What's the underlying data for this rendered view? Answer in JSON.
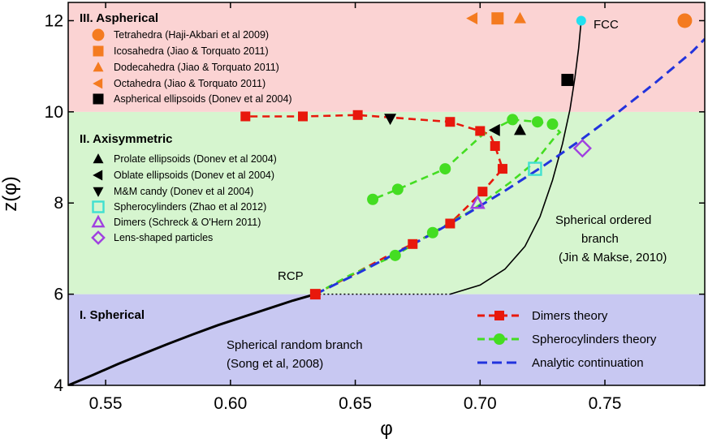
{
  "chart_data": {
    "type": "scatter",
    "title": "",
    "xlabel": "φ",
    "ylabel": "z(φ)",
    "xlim": [
      0.535,
      0.79
    ],
    "ylim": [
      4,
      12.4
    ],
    "x_ticks": [
      0.55,
      0.6,
      0.65,
      0.7,
      0.75
    ],
    "x_tick_labels": [
      "0.55",
      "0.60",
      "0.65",
      "0.70",
      "0.75"
    ],
    "y_ticks": [
      4,
      6,
      8,
      10,
      12
    ],
    "y_tick_labels": [
      "4",
      "6",
      "8",
      "10",
      "12"
    ],
    "regions": [
      {
        "name": "I. Spherical",
        "y0": 4,
        "y1": 6,
        "color": "#c8c8f2"
      },
      {
        "name": "II. Axisymmetric",
        "y0": 6,
        "y1": 10,
        "color": "#d6f5cf"
      },
      {
        "name": "III. Aspherical",
        "y0": 10,
        "y1": 12.4,
        "color": "#fbd3d3"
      }
    ],
    "curves": {
      "spherical_random_branch": {
        "x": [
          0.535,
          0.545,
          0.555,
          0.565,
          0.575,
          0.585,
          0.595,
          0.605,
          0.615,
          0.625,
          0.634
        ],
        "y": [
          4.0,
          4.23,
          4.47,
          4.69,
          4.91,
          5.12,
          5.32,
          5.5,
          5.68,
          5.86,
          6.0
        ]
      },
      "rcp_dotted_link": {
        "x": [
          0.634,
          0.688
        ],
        "y": [
          6.0,
          6.0
        ]
      },
      "spherical_ordered_branch": {
        "x": [
          0.688,
          0.7,
          0.71,
          0.718,
          0.724,
          0.729,
          0.733,
          0.736,
          0.738,
          0.7395,
          0.7405
        ],
        "y": [
          6.0,
          6.2,
          6.55,
          7.05,
          7.7,
          8.5,
          9.3,
          10.05,
          10.75,
          11.4,
          12.0
        ]
      },
      "analytic_continuation": {
        "x": [
          0.634,
          0.65,
          0.665,
          0.68,
          0.695,
          0.71,
          0.725,
          0.74,
          0.755,
          0.77,
          0.785,
          0.79
        ],
        "y": [
          6.0,
          6.43,
          6.86,
          7.3,
          7.77,
          8.27,
          8.8,
          9.37,
          9.98,
          10.63,
          11.32,
          11.6
        ]
      },
      "dimers_theory": {
        "x": [
          0.634,
          0.648,
          0.663,
          0.673,
          0.688,
          0.701,
          0.709,
          0.706,
          0.704,
          0.7,
          0.688,
          0.651,
          0.629,
          0.606
        ],
        "y": [
          6.0,
          6.4,
          6.84,
          7.1,
          7.55,
          8.25,
          8.75,
          9.25,
          9.5,
          9.58,
          9.78,
          9.93,
          9.9,
          9.9
        ]
      },
      "spherocylinders_theory": {
        "x": [
          0.634,
          0.648,
          0.666,
          0.681,
          0.697,
          0.712,
          0.722,
          0.73,
          0.732,
          0.729,
          0.723,
          0.713,
          0.701,
          0.686,
          0.667,
          0.657
        ],
        "y": [
          6.0,
          6.42,
          6.85,
          7.35,
          7.85,
          8.45,
          8.9,
          9.45,
          9.55,
          9.73,
          9.78,
          9.83,
          9.5,
          8.75,
          8.3,
          8.08
        ]
      }
    },
    "series": [
      {
        "name": "Tetrahedra (Haji-Akbari et al 2009)",
        "marker": "circle",
        "color": "#f47b20",
        "points": [
          {
            "x": 0.782,
            "y": 12.0
          }
        ]
      },
      {
        "name": "Icosahedra (Jiao & Torquato 2011)",
        "marker": "square",
        "color": "#f47b20",
        "points": [
          {
            "x": 0.707,
            "y": 12.05
          }
        ]
      },
      {
        "name": "Dodecahedra (Jiao & Torquato 2011)",
        "marker": "triangle-up",
        "color": "#f47b20",
        "points": [
          {
            "x": 0.716,
            "y": 12.05
          }
        ]
      },
      {
        "name": "Octahedra (Jiao & Torquato 2011)",
        "marker": "triangle-left",
        "color": "#f47b20",
        "points": [
          {
            "x": 0.697,
            "y": 12.05
          }
        ]
      },
      {
        "name": "Aspherical ellipsoids (Donev et al 2004)",
        "marker": "square",
        "color": "#000000",
        "points": [
          {
            "x": 0.735,
            "y": 10.7
          }
        ]
      },
      {
        "name": "Prolate ellipsoids (Donev et al 2004)",
        "marker": "triangle-up",
        "color": "#000000",
        "points": [
          {
            "x": 0.716,
            "y": 9.6
          }
        ]
      },
      {
        "name": "Oblate ellipsoids (Donev et al 2004)",
        "marker": "triangle-left",
        "color": "#000000",
        "points": [
          {
            "x": 0.706,
            "y": 9.6
          }
        ]
      },
      {
        "name": "M&M candy (Donev et al 2004)",
        "marker": "triangle-down",
        "color": "#000000",
        "points": [
          {
            "x": 0.664,
            "y": 9.85
          }
        ]
      },
      {
        "name": "Spherocylinders (Zhao et al 2012)",
        "marker": "square-open",
        "color": "#40e0d0",
        "points": [
          {
            "x": 0.722,
            "y": 8.75
          }
        ]
      },
      {
        "name": "Dimers (Schreck & O'Hern 2011)",
        "marker": "triangle-open",
        "color": "#a040e0",
        "points": [
          {
            "x": 0.699,
            "y": 8.0
          }
        ]
      },
      {
        "name": "Lens-shaped particles",
        "marker": "diamond-open",
        "color": "#a040e0",
        "points": [
          {
            "x": 0.741,
            "y": 9.2
          }
        ]
      },
      {
        "name": "FCC",
        "marker": "circle",
        "color": "#22e0f0",
        "points": [
          {
            "x": 0.7405,
            "y": 12.0
          }
        ]
      },
      {
        "name": "RCP",
        "marker": "square",
        "color": "#e8180c",
        "points": [
          {
            "x": 0.634,
            "y": 6.0
          }
        ]
      }
    ],
    "dimers_markers": {
      "x": [
        0.673,
        0.688,
        0.701,
        0.709,
        0.706,
        0.7,
        0.688,
        0.651,
        0.629,
        0.606
      ],
      "y": [
        7.1,
        7.55,
        8.25,
        8.75,
        9.25,
        9.58,
        9.78,
        9.93,
        9.9,
        9.9
      ]
    },
    "spherocylinders_markers": {
      "x": [
        0.666,
        0.681,
        0.729,
        0.723,
        0.713,
        0.686,
        0.667,
        0.657
      ],
      "y": [
        6.85,
        7.35,
        9.73,
        9.78,
        9.83,
        8.75,
        8.3,
        8.08
      ]
    },
    "legend_symbols": [
      {
        "label": "Tetrahedra (Haji-Akbari et al 2009)",
        "marker": "circle",
        "color": "#f47b20"
      },
      {
        "label": "Icosahedra (Jiao & Torquato 2011)",
        "marker": "square",
        "color": "#f47b20"
      },
      {
        "label": "Dodecahedra (Jiao & Torquato 2011)",
        "marker": "triangle-up",
        "color": "#f47b20"
      },
      {
        "label": "Octahedra (Jiao & Torquato 2011)",
        "marker": "triangle-left",
        "color": "#f47b20"
      },
      {
        "label": "Aspherical ellipsoids (Donev et al 2004)",
        "marker": "square",
        "color": "#000000"
      },
      {
        "label": "Prolate ellipsoids (Donev et al 2004)",
        "marker": "triangle-up",
        "color": "#000000"
      },
      {
        "label": "Oblate ellipsoids (Donev et al 2004)",
        "marker": "triangle-left",
        "color": "#000000"
      },
      {
        "label": "M&M candy (Donev et al 2004)",
        "marker": "triangle-down",
        "color": "#000000"
      },
      {
        "label": "Spherocylinders (Zhao et al 2012)",
        "marker": "square-open",
        "color": "#40e0d0"
      },
      {
        "label": "Dimers (Schreck & O'Hern 2011)",
        "marker": "triangle-open",
        "color": "#a040e0"
      },
      {
        "label": "Lens-shaped particles",
        "marker": "diamond-open",
        "color": "#a040e0"
      }
    ],
    "line_legend": [
      {
        "label": "Dimers theory",
        "color": "#e8180c",
        "marker": "square"
      },
      {
        "label": "Spherocylinders theory",
        "color": "#44dd22",
        "marker": "circle"
      },
      {
        "label": "Analytic continuation",
        "color": "#2233dd",
        "marker": "none"
      }
    ],
    "annotations": {
      "fcc": "FCC",
      "rcp": "RCP",
      "ordered_branch": [
        "Spherical ordered",
        "branch",
        "(Jin & Makse, 2010)"
      ],
      "random_branch": [
        "Spherical random branch",
        "(Song et al, 2008)"
      ]
    }
  }
}
